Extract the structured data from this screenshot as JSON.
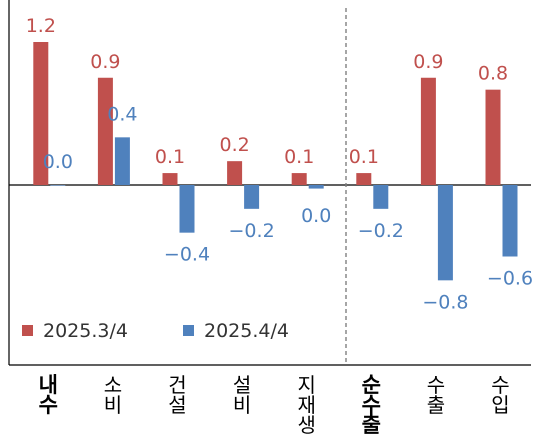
{
  "chart_data": {
    "type": "bar",
    "categories": [
      {
        "lines": [
          "내",
          "수"
        ],
        "bold": true
      },
      {
        "lines": [
          "소",
          "비"
        ],
        "bold": false
      },
      {
        "lines": [
          "건",
          "설"
        ],
        "bold": false
      },
      {
        "lines": [
          "설",
          "비"
        ],
        "bold": false
      },
      {
        "lines": [
          "지",
          "재",
          "생"
        ],
        "bold": false
      },
      {
        "lines": [
          "순",
          "수",
          "출"
        ],
        "bold": true
      },
      {
        "lines": [
          "수",
          "출"
        ],
        "bold": false
      },
      {
        "lines": [
          "수",
          "입"
        ],
        "bold": false
      }
    ],
    "series": [
      {
        "name": "2025.3/4",
        "color": "#c0504d",
        "values": [
          1.2,
          0.9,
          0.1,
          0.2,
          0.1,
          0.1,
          0.9,
          0.8
        ],
        "labels": [
          "1.2",
          "0.9",
          "0.1",
          "0.2",
          "0.1",
          "0.1",
          "0.9",
          "0.8"
        ]
      },
      {
        "name": "2025.4/4",
        "color": "#4f81bd",
        "values": [
          0.0,
          0.4,
          -0.4,
          -0.2,
          -0.03,
          -0.2,
          -0.8,
          -0.6
        ],
        "labels": [
          "0.0",
          "0.4",
          "−0.4",
          "−0.2",
          "0.0",
          "−0.2",
          "−0.8",
          "−0.6"
        ]
      }
    ],
    "ylim": [
      -1.5,
      1.5
    ],
    "grid": false,
    "legend": "bottom-left",
    "separator_after_category": 4
  }
}
